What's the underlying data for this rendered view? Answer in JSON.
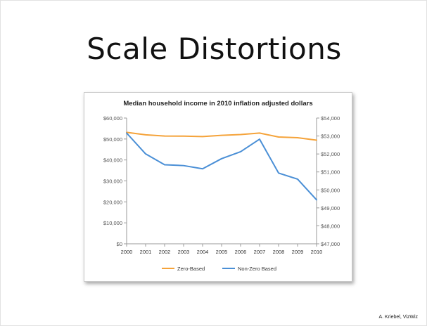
{
  "slide": {
    "title": "Scale Distortions",
    "credit": "A. Kriebel, VizWiz"
  },
  "chart_data": {
    "type": "line",
    "title": "Median household income in 2010 inflation adjusted dollars",
    "categories": [
      "2000",
      "2001",
      "2002",
      "2003",
      "2004",
      "2005",
      "2006",
      "2007",
      "2008",
      "2009",
      "2010"
    ],
    "y_left": {
      "ylim": [
        0,
        60000
      ],
      "ticks": [
        "$0",
        "$10,000",
        "$20,000",
        "$30,000",
        "$40,000",
        "$50,000",
        "$60,000"
      ]
    },
    "y_right": {
      "ylim": [
        47000,
        54000
      ],
      "ticks": [
        "$47,000",
        "$48,000",
        "$49,000",
        "$50,000",
        "$51,000",
        "$52,000",
        "$53,000",
        "$54,000"
      ]
    },
    "series": [
      {
        "name": "Zero-Based",
        "axis": "left",
        "color": "#F5A33A",
        "values": [
          53164,
          52005,
          51398,
          51353,
          51174,
          51739,
          52124,
          52823,
          50939,
          50599,
          49445
        ]
      },
      {
        "name": "Non-Zero Based",
        "axis": "right",
        "color": "#4A8FD6",
        "values": [
          53164,
          52005,
          51398,
          51353,
          51174,
          51739,
          52124,
          52823,
          50939,
          50599,
          49445
        ]
      }
    ],
    "legend": "bottom",
    "grid": false
  }
}
